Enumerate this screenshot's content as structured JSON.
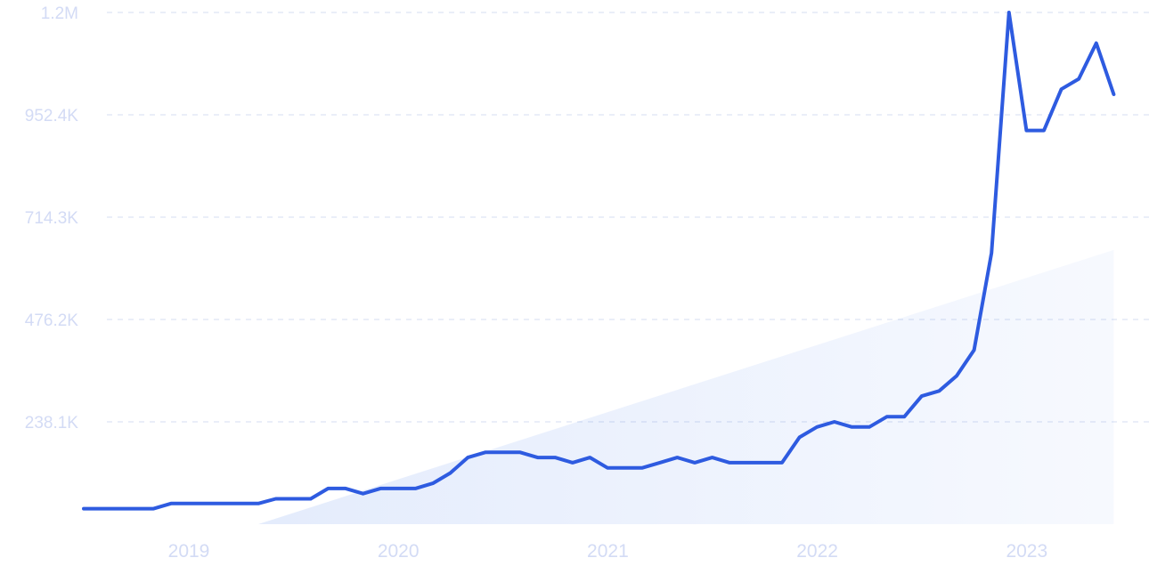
{
  "chart_data": {
    "type": "line",
    "title": "",
    "xlabel": "",
    "ylabel": "",
    "grid": true,
    "legend": "none",
    "ylim": [
      0,
      1200000
    ],
    "y_tick_labels": [
      "1.2M",
      "952.4K",
      "714.3K",
      "476.2K",
      "238.1K"
    ],
    "y_tick_values": [
      1190500,
      952400,
      714300,
      476200,
      238100
    ],
    "x_tick_labels": [
      "2019",
      "2020",
      "2021",
      "2022",
      "2023"
    ],
    "x_tick_dates": [
      "2019-01-01",
      "2020-01-01",
      "2021-01-01",
      "2022-01-01",
      "2023-01-01"
    ],
    "series": [
      {
        "color": "#2e5be0",
        "points": [
          [
            "2018-08",
            36000
          ],
          [
            "2018-09",
            36000
          ],
          [
            "2018-10",
            36000
          ],
          [
            "2018-11",
            36000
          ],
          [
            "2018-12",
            36000
          ],
          [
            "2019-01",
            48000
          ],
          [
            "2019-02",
            48000
          ],
          [
            "2019-03",
            48000
          ],
          [
            "2019-04",
            48000
          ],
          [
            "2019-05",
            48000
          ],
          [
            "2019-06",
            48000
          ],
          [
            "2019-07",
            59000
          ],
          [
            "2019-08",
            59000
          ],
          [
            "2019-09",
            59000
          ],
          [
            "2019-10",
            83000
          ],
          [
            "2019-11",
            83000
          ],
          [
            "2019-12",
            71000
          ],
          [
            "2020-01",
            83000
          ],
          [
            "2020-02",
            83000
          ],
          [
            "2020-03",
            83000
          ],
          [
            "2020-04",
            95000
          ],
          [
            "2020-05",
            119000
          ],
          [
            "2020-06",
            155000
          ],
          [
            "2020-07",
            167000
          ],
          [
            "2020-08",
            167000
          ],
          [
            "2020-09",
            167000
          ],
          [
            "2020-10",
            155000
          ],
          [
            "2020-11",
            155000
          ],
          [
            "2020-12",
            143000
          ],
          [
            "2021-01",
            155000
          ],
          [
            "2021-02",
            131000
          ],
          [
            "2021-03",
            131000
          ],
          [
            "2021-04",
            131000
          ],
          [
            "2021-05",
            143000
          ],
          [
            "2021-06",
            155000
          ],
          [
            "2021-07",
            143000
          ],
          [
            "2021-08",
            155000
          ],
          [
            "2021-09",
            143000
          ],
          [
            "2021-10",
            143000
          ],
          [
            "2021-11",
            143000
          ],
          [
            "2021-12",
            143000
          ],
          [
            "2022-01",
            202000
          ],
          [
            "2022-02",
            226000
          ],
          [
            "2022-03",
            238000
          ],
          [
            "2022-04",
            226000
          ],
          [
            "2022-05",
            226000
          ],
          [
            "2022-06",
            250000
          ],
          [
            "2022-07",
            250000
          ],
          [
            "2022-08",
            298000
          ],
          [
            "2022-09",
            310000
          ],
          [
            "2022-10",
            345000
          ],
          [
            "2022-11",
            405000
          ],
          [
            "2022-12",
            631000
          ],
          [
            "2023-01",
            1190500
          ],
          [
            "2023-02",
            916000
          ],
          [
            "2023-03",
            916000
          ],
          [
            "2023-04",
            1012000
          ],
          [
            "2023-05",
            1036000
          ],
          [
            "2023-06",
            1119000
          ],
          [
            "2023-07",
            1000000
          ]
        ]
      }
    ],
    "trend_area": {
      "color": "#2e6bea",
      "from": [
        "2019-06",
        0
      ],
      "to": [
        "2023-07",
        638000
      ]
    }
  }
}
